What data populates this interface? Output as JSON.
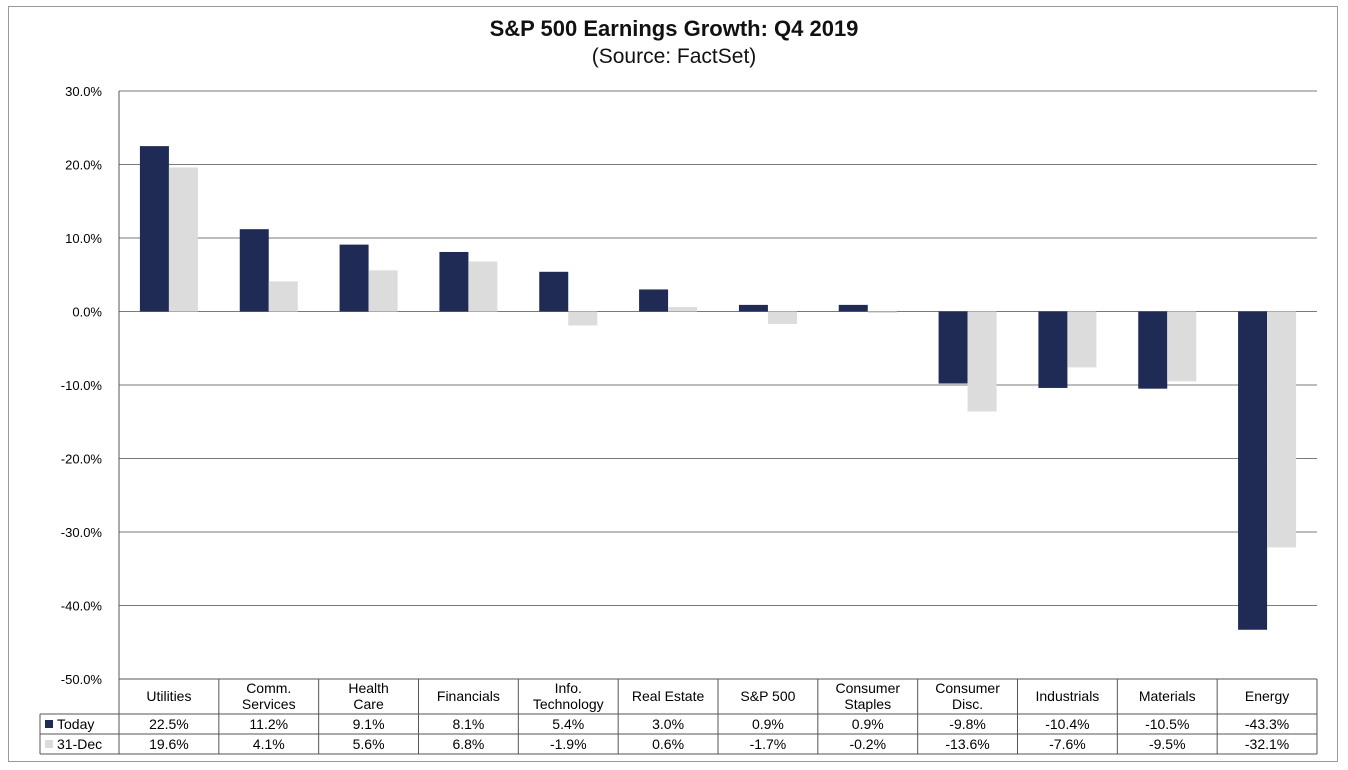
{
  "chart_data": {
    "type": "bar",
    "title": "S&P 500 Earnings Growth: Q4 2019",
    "subtitle": "(Source: FactSet)",
    "categories": [
      [
        "Utilities"
      ],
      [
        "Comm.",
        "Services"
      ],
      [
        "Health",
        "Care"
      ],
      [
        "Financials"
      ],
      [
        "Info.",
        "Technology"
      ],
      [
        "Real Estate"
      ],
      [
        "S&P 500"
      ],
      [
        "Consumer",
        "Staples"
      ],
      [
        "Consumer",
        "Disc."
      ],
      [
        "Industrials"
      ],
      [
        "Materials"
      ],
      [
        "Energy"
      ]
    ],
    "series": [
      {
        "name": "Today",
        "color": "#1f2a55",
        "values": [
          22.5,
          11.2,
          9.1,
          8.1,
          5.4,
          3.0,
          0.9,
          0.9,
          -9.8,
          -10.4,
          -10.5,
          -43.3
        ],
        "labels": [
          "22.5%",
          "11.2%",
          "9.1%",
          "8.1%",
          "5.4%",
          "3.0%",
          "0.9%",
          "0.9%",
          "-9.8%",
          "-10.4%",
          "-10.5%",
          "-43.3%"
        ]
      },
      {
        "name": "31-Dec",
        "color": "#dcdcdc",
        "values": [
          19.6,
          4.1,
          5.6,
          6.8,
          -1.9,
          0.6,
          -1.7,
          -0.2,
          -13.6,
          -7.6,
          -9.5,
          -32.1
        ],
        "labels": [
          "19.6%",
          "4.1%",
          "5.6%",
          "6.8%",
          "-1.9%",
          "0.6%",
          "-1.7%",
          "-0.2%",
          "-13.6%",
          "-7.6%",
          "-9.5%",
          "-32.1%"
        ]
      }
    ],
    "ylim": [
      -50,
      30
    ],
    "yticks": [
      30,
      20,
      10,
      0,
      -10,
      -20,
      -30,
      -40,
      -50
    ],
    "ytick_labels": [
      "30.0%",
      "20.0%",
      "10.0%",
      "0.0%",
      "-10.0%",
      "-20.0%",
      "-30.0%",
      "-40.0%",
      "-50.0%"
    ],
    "grid": true,
    "legend": "data-table",
    "xlabel": "",
    "ylabel": ""
  }
}
